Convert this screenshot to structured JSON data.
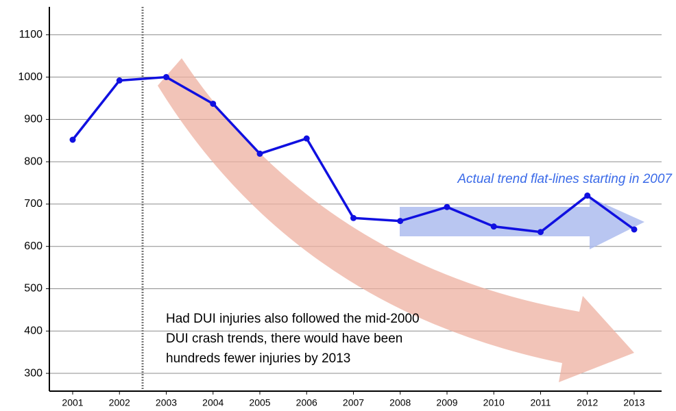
{
  "chart_data": {
    "type": "line",
    "x": [
      2001,
      2002,
      2003,
      2004,
      2005,
      2006,
      2007,
      2008,
      2009,
      2010,
      2011,
      2012,
      2013
    ],
    "series": [
      {
        "color": "#1010e0",
        "values": [
          852,
          992,
          1000,
          937,
          819,
          855,
          667,
          660,
          693,
          647,
          634,
          720,
          640
        ]
      }
    ],
    "ylim": [
      258,
      1166
    ],
    "yticks": [
      300,
      400,
      500,
      600,
      700,
      800,
      900,
      1000,
      1100
    ],
    "grid": true,
    "annotations": [
      "Actual trend flat-lines starting in 2007",
      [
        "Had DUI injuries also followed the mid-2000",
        "DUI crash trends, there would have been",
        "hundreds fewer injuries by 2013"
      ]
    ]
  }
}
